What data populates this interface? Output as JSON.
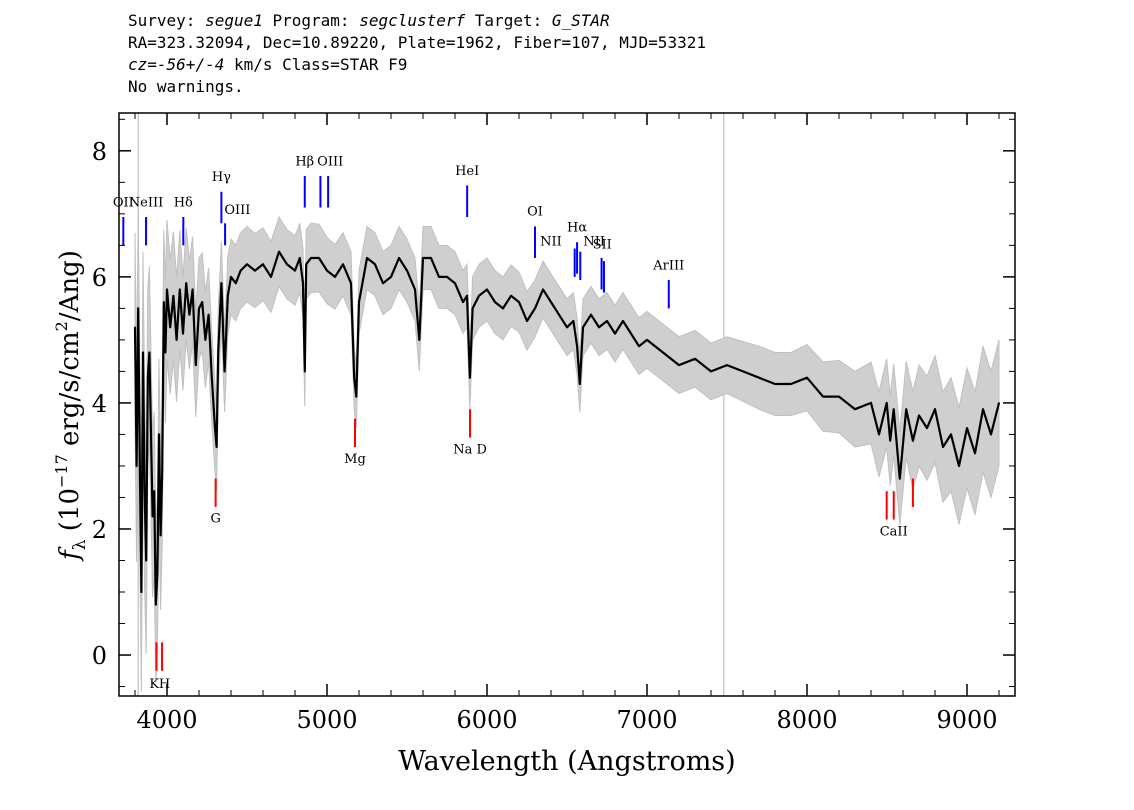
{
  "header": {
    "survey_label": "Survey: ",
    "survey": "segue1",
    "program_label": " Program: ",
    "program": "segclusterf",
    "target_label": " Target: ",
    "target": "G_STAR",
    "line2": "RA=323.32094, Dec=10.89220, Plate=1962, Fiber=107, MJD=53321",
    "cz_label": "cz=",
    "cz_value": "-56+/-4",
    "line3_rest": " km/s Class=STAR F9",
    "line4": "No warnings."
  },
  "chart_data": {
    "type": "line",
    "xlabel": "Wavelength (Angstroms)",
    "ylabel": "f_λ (10^-17 erg/s/cm^2/Ang)",
    "xlim": [
      3700,
      9300
    ],
    "ylim": [
      -0.65,
      8.6
    ],
    "x_ticks": [
      4000,
      5000,
      6000,
      7000,
      8000,
      9000
    ],
    "x_tick_labels": [
      "4000",
      "5000",
      "6000",
      "7000",
      "8000",
      "9000"
    ],
    "y_ticks": [
      0,
      2,
      4,
      6,
      8
    ],
    "y_tick_labels": [
      "0",
      "2",
      "4",
      "6",
      "8"
    ],
    "grid": false,
    "colors": {
      "flux": "#000000",
      "error": "#c0c0c0",
      "emission": "#0000ff",
      "absorption": "#ff0000"
    },
    "vertical_lines_gray": [
      3820,
      7480
    ],
    "series": [
      {
        "role": "flux",
        "x": [
          3800,
          3810,
          3820,
          3830,
          3840,
          3850,
          3860,
          3870,
          3880,
          3890,
          3900,
          3910,
          3920,
          3930,
          3940,
          3950,
          3960,
          3970,
          3980,
          3990,
          4000,
          4020,
          4040,
          4060,
          4080,
          4100,
          4120,
          4140,
          4160,
          4180,
          4200,
          4220,
          4240,
          4260,
          4280,
          4300,
          4310,
          4320,
          4340,
          4360,
          4380,
          4400,
          4430,
          4460,
          4500,
          4550,
          4600,
          4650,
          4700,
          4750,
          4800,
          4830,
          4850,
          4861,
          4870,
          4900,
          4950,
          5000,
          5050,
          5100,
          5150,
          5170,
          5183,
          5200,
          5250,
          5300,
          5350,
          5400,
          5450,
          5500,
          5550,
          5577,
          5600,
          5650,
          5700,
          5750,
          5800,
          5850,
          5875,
          5893,
          5910,
          5950,
          6000,
          6050,
          6100,
          6150,
          6200,
          6250,
          6300,
          6350,
          6400,
          6450,
          6500,
          6540,
          6563,
          6580,
          6600,
          6650,
          6700,
          6750,
          6800,
          6850,
          6900,
          6950,
          7000,
          7100,
          7200,
          7300,
          7400,
          7500,
          7600,
          7700,
          7800,
          7900,
          8000,
          8100,
          8200,
          8300,
          8400,
          8450,
          8498,
          8520,
          8542,
          8580,
          8620,
          8662,
          8700,
          8750,
          8800,
          8850,
          8900,
          8950,
          9000,
          9050,
          9100,
          9150,
          9200
        ],
        "y": [
          5.2,
          3.0,
          5.5,
          3.1,
          1.0,
          4.8,
          2.6,
          1.5,
          4.4,
          4.8,
          3.5,
          2.2,
          2.6,
          0.8,
          1.3,
          3.5,
          1.9,
          2.9,
          5.6,
          4.8,
          5.8,
          5.2,
          5.7,
          5.0,
          5.8,
          5.1,
          5.9,
          5.4,
          5.8,
          4.6,
          5.5,
          5.6,
          5.0,
          5.4,
          4.4,
          3.6,
          3.3,
          4.8,
          5.9,
          4.5,
          5.7,
          6.0,
          5.9,
          6.1,
          6.2,
          6.1,
          6.2,
          6.0,
          6.4,
          6.2,
          6.1,
          6.3,
          5.9,
          4.5,
          6.2,
          6.3,
          6.3,
          6.1,
          6.0,
          6.2,
          5.9,
          4.4,
          4.1,
          5.6,
          6.3,
          6.2,
          5.9,
          6.0,
          6.3,
          6.1,
          5.8,
          5.0,
          6.3,
          6.3,
          6.0,
          6.0,
          5.9,
          5.6,
          5.7,
          4.4,
          5.5,
          5.7,
          5.8,
          5.6,
          5.5,
          5.7,
          5.6,
          5.3,
          5.5,
          5.8,
          5.6,
          5.4,
          5.2,
          5.3,
          4.9,
          4.3,
          5.2,
          5.4,
          5.2,
          5.3,
          5.1,
          5.3,
          5.1,
          4.9,
          5.0,
          4.8,
          4.6,
          4.7,
          4.5,
          4.6,
          4.5,
          4.4,
          4.3,
          4.3,
          4.4,
          4.1,
          4.1,
          3.9,
          4.0,
          3.5,
          4.0,
          3.4,
          3.9,
          2.8,
          3.9,
          3.4,
          3.8,
          3.6,
          3.9,
          3.3,
          3.5,
          3.0,
          3.6,
          3.2,
          3.9,
          3.5,
          4.0
        ]
      },
      {
        "role": "error",
        "x": [
          3800,
          3850,
          3900,
          3950,
          4000,
          4100,
          4200,
          4300,
          4400,
          4500,
          4700,
          4900,
          5100,
          5300,
          5500,
          5700,
          5900,
          6100,
          6300,
          6500,
          6700,
          6900,
          7100,
          7300,
          7500,
          7700,
          7900,
          8100,
          8300,
          8500,
          8700,
          8900,
          9100,
          9200
        ],
        "y": [
          1.5,
          1.6,
          1.3,
          1.2,
          1.1,
          0.9,
          0.8,
          0.7,
          0.6,
          0.6,
          0.55,
          0.55,
          0.5,
          0.5,
          0.5,
          0.5,
          0.5,
          0.5,
          0.45,
          0.45,
          0.45,
          0.45,
          0.45,
          0.45,
          0.45,
          0.5,
          0.5,
          0.55,
          0.6,
          0.7,
          0.8,
          0.9,
          1.0,
          1.0
        ]
      }
    ],
    "line_markers_emission": [
      {
        "label": "OII",
        "x": 3727,
        "y0": 6.5,
        "y1": 6.95,
        "tx": 3727,
        "ty": 7.12
      },
      {
        "label": "NeIII",
        "x": 3869,
        "y0": 6.5,
        "y1": 6.95,
        "tx": 3869,
        "ty": 7.12
      },
      {
        "label": "Hδ",
        "x": 4102,
        "y0": 6.5,
        "y1": 6.95,
        "tx": 4102,
        "ty": 7.12
      },
      {
        "label": "Hγ",
        "x": 4340,
        "y0": 6.85,
        "y1": 7.35,
        "tx": 4340,
        "ty": 7.52
      },
      {
        "label": "OIII",
        "x": 4363,
        "y0": 6.5,
        "y1": 6.85,
        "tx": 4440,
        "ty": 7.0
      },
      {
        "label": "Hβ",
        "x": 4861,
        "y0": 7.1,
        "y1": 7.6,
        "tx": 4861,
        "ty": 7.77
      },
      {
        "label": "OIII",
        "x": 4959,
        "y0": 7.1,
        "y1": 7.6,
        "tx": 5020,
        "ty": 7.77
      },
      {
        "label": "OIII",
        "x": 5007,
        "y0": 7.1,
        "y1": 7.6,
        "tx": "",
        "ty": ""
      },
      {
        "label": "HeI",
        "x": 5876,
        "y0": 6.95,
        "y1": 7.45,
        "tx": 5876,
        "ty": 7.62
      },
      {
        "label": "OI",
        "x": 6300,
        "y0": 6.3,
        "y1": 6.8,
        "tx": 6300,
        "ty": 6.97
      },
      {
        "label": "NII",
        "x": 6548,
        "y0": 6.0,
        "y1": 6.45,
        "tx": 6400,
        "ty": 6.5
      },
      {
        "label": "Hα",
        "x": 6563,
        "y0": 6.05,
        "y1": 6.55,
        "tx": 6563,
        "ty": 6.72
      },
      {
        "label": "NII",
        "x": 6583,
        "y0": 5.95,
        "y1": 6.4,
        "tx": 6670,
        "ty": 6.5
      },
      {
        "label": "SII",
        "x": 6716,
        "y0": 5.8,
        "y1": 6.3,
        "tx": 6720,
        "ty": 6.45
      },
      {
        "label": "SII",
        "x": 6731,
        "y0": 5.75,
        "y1": 6.25,
        "tx": "",
        "ty": ""
      },
      {
        "label": "ArIII",
        "x": 7136,
        "y0": 5.5,
        "y1": 5.95,
        "tx": 7136,
        "ty": 6.12
      }
    ],
    "line_markers_absorption": [
      {
        "label": "K",
        "x": 3934,
        "y0": -0.25,
        "y1": 0.2,
        "tx": 3920,
        "ty": -0.52
      },
      {
        "label": "H",
        "x": 3969,
        "y0": -0.25,
        "y1": 0.2,
        "tx": 3985,
        "ty": -0.52
      },
      {
        "label": "G",
        "x": 4304,
        "y0": 2.35,
        "y1": 2.8,
        "tx": 4304,
        "ty": 2.1
      },
      {
        "label": "Mg",
        "x": 5175,
        "y0": 3.3,
        "y1": 3.75,
        "tx": 5175,
        "ty": 3.05
      },
      {
        "label": "Na D",
        "x": 5894,
        "y0": 3.45,
        "y1": 3.9,
        "tx": 5894,
        "ty": 3.2
      },
      {
        "label": "CaII",
        "x": 8498,
        "y0": 2.15,
        "y1": 2.6,
        "tx": 8542,
        "ty": 1.9
      },
      {
        "label": "CaII",
        "x": 8542,
        "y0": 2.15,
        "y1": 2.6,
        "tx": "",
        "ty": ""
      },
      {
        "label": "CaII",
        "x": 8662,
        "y0": 2.35,
        "y1": 2.8,
        "tx": "",
        "ty": ""
      }
    ]
  }
}
